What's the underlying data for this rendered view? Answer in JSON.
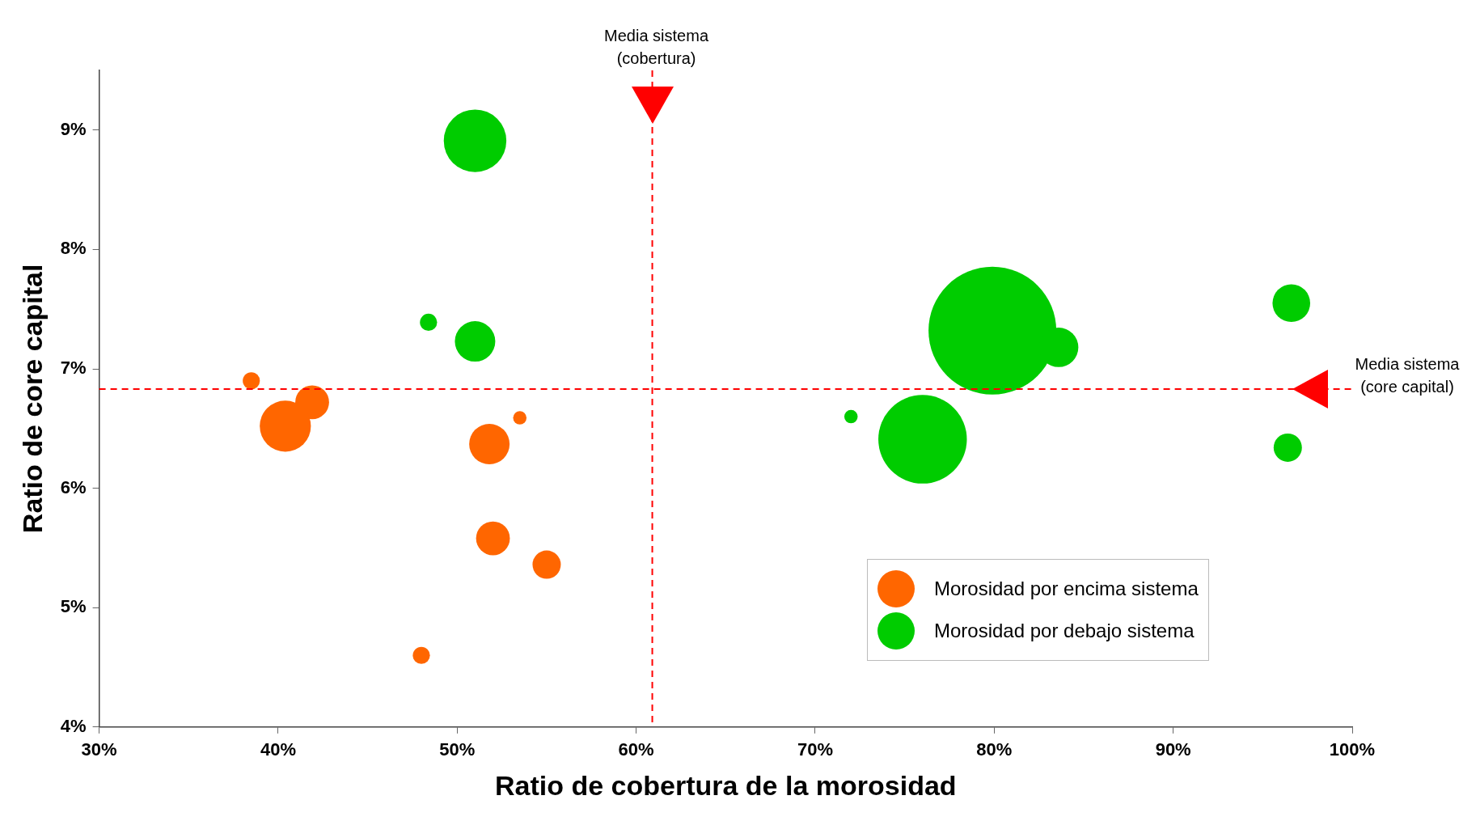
{
  "chart_data": {
    "type": "bubble",
    "xlabel": "Ratio de cobertura de la morosidad",
    "ylabel": "Ratio de core capital",
    "xlim": [
      30,
      100
    ],
    "ylim": [
      4,
      9.5
    ],
    "xticks": [
      {
        "value": 30,
        "label": "30%"
      },
      {
        "value": 40,
        "label": "40%"
      },
      {
        "value": 50,
        "label": "50%"
      },
      {
        "value": 60,
        "label": "60%"
      },
      {
        "value": 70,
        "label": "70%"
      },
      {
        "value": 80,
        "label": "80%"
      },
      {
        "value": 90,
        "label": "90%"
      },
      {
        "value": 100,
        "label": "100%"
      }
    ],
    "yticks": [
      {
        "value": 4,
        "label": "4%"
      },
      {
        "value": 5,
        "label": "5%"
      },
      {
        "value": 6,
        "label": "6%"
      },
      {
        "value": 7,
        "label": "7%"
      },
      {
        "value": 8,
        "label": "8%"
      },
      {
        "value": 9,
        "label": "9%"
      }
    ],
    "grid": false,
    "legend": "bottom right",
    "series": [
      {
        "name": "Morosidad por encima sistema",
        "color": "#ff6600",
        "x": [
          38.5,
          41.9,
          40.4,
          53.5,
          51.8,
          52.0,
          55.0,
          48.0
        ],
        "values": [
          6.9,
          6.72,
          6.52,
          6.59,
          6.37,
          5.58,
          5.36,
          4.6
        ],
        "sizes": [
          0.018,
          0.07,
          0.16,
          0.011,
          0.1,
          0.07,
          0.049,
          0.018
        ]
      },
      {
        "name": "Morosidad por debajo sistema",
        "color": "#00cc00",
        "x": [
          51.0,
          48.4,
          51.0,
          72.0,
          76.0,
          79.9,
          83.6,
          96.6,
          96.4
        ],
        "values": [
          8.91,
          7.39,
          7.23,
          6.6,
          6.41,
          7.32,
          7.18,
          7.55,
          6.34
        ],
        "sizes": [
          0.24,
          0.018,
          0.1,
          0.011,
          0.48,
          1,
          0.095,
          0.087,
          0.049
        ]
      }
    ],
    "ref_lines": [
      {
        "axis": "x",
        "value": 60.9,
        "label": "Media sistema (cobertura)",
        "color": "#ff0000",
        "line_style": "dashed"
      },
      {
        "axis": "y",
        "value": 6.83,
        "label": "Media sistema (core capital)",
        "color": "#ff0000",
        "line_style": "dashed"
      }
    ]
  }
}
